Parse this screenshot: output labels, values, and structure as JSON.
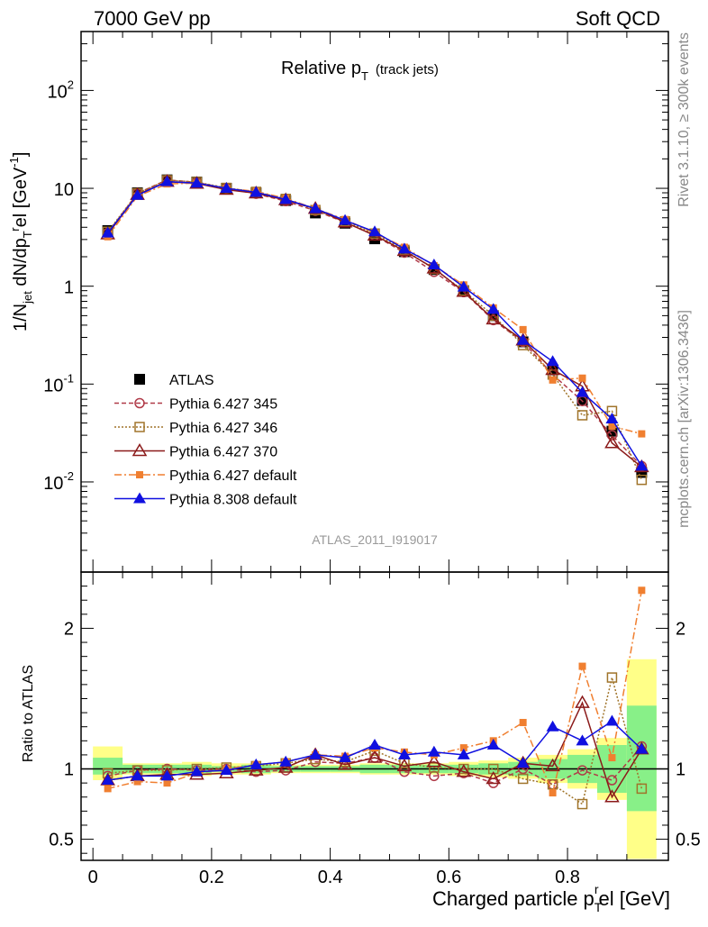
{
  "header": {
    "energy_label": "7000 GeV pp",
    "process_label": "Soft QCD",
    "right_label_top": "Rivet 3.1.10, ≥ 300k events",
    "right_label_bottom": "mcplots.cern.ch [arXiv:1306.3436]"
  },
  "plot": {
    "title_main": "Relative p",
    "title_sub": "T",
    "title_extra": "(track jets)",
    "analysis_id": "ATLAS_2011_I919017",
    "ylabel_main": "1/N",
    "ylabel_main_sub": "jet",
    "ylabel_main_rest": " dN/dp",
    "ylabel_main_sub2": "T",
    "ylabel_main_sup2": "r",
    "ylabel_main_tail": "el [GeV",
    "ylabel_main_sup3": "-1",
    "ylabel_main_end": "]",
    "ylabel_ratio": "Ratio to ATLAS",
    "xlabel_main": "Charged particle p",
    "xlabel_sub": "T",
    "xlabel_sup": "r",
    "xlabel_tail": "el [GeV]",
    "colors": {
      "atlas": "#000000",
      "p345": "#b03a48",
      "p346": "#a0742a",
      "p370": "#8b1a1a",
      "pdefault": "#f07f30",
      "p8": "#1010e0",
      "band_inner": "#88f088",
      "band_outer": "#ffff88"
    }
  },
  "chart_data": {
    "type": "line",
    "x": [
      0.025,
      0.075,
      0.125,
      0.175,
      0.225,
      0.275,
      0.325,
      0.375,
      0.425,
      0.475,
      0.525,
      0.575,
      0.625,
      0.675,
      0.725,
      0.775,
      0.825,
      0.875,
      0.925
    ],
    "xlim": [
      -0.02,
      0.97
    ],
    "x_ticks": [
      0,
      0.2,
      0.4,
      0.6,
      0.8
    ],
    "x_tick_labels": [
      "0",
      "0.2",
      "0.4",
      "0.6",
      "0.8"
    ],
    "main": {
      "yscale": "log",
      "ylim": [
        0.0012,
        400
      ],
      "y_ticks": [
        0.01,
        0.1,
        1,
        10,
        100
      ],
      "y_tick_labels": [
        [
          "10",
          "-2"
        ],
        [
          "10",
          "-1"
        ],
        [
          "1",
          ""
        ],
        [
          "10",
          ""
        ],
        [
          "10",
          "2"
        ]
      ],
      "legend_position": "lower-left",
      "series": [
        {
          "name": "ATLAS",
          "style": "atlas",
          "values": [
            3.7,
            9.0,
            12.2,
            11.6,
            10.0,
            9.0,
            7.5,
            5.6,
            4.4,
            3.05,
            2.25,
            1.48,
            0.9,
            0.5,
            0.27,
            0.14,
            0.068,
            0.033,
            0.0125
          ]
        },
        {
          "name": "Pythia 6.427 345",
          "style": "p345",
          "values": [
            3.5,
            8.9,
            12.2,
            11.5,
            10.0,
            8.8,
            7.4,
            5.9,
            4.5,
            3.3,
            2.2,
            1.4,
            0.87,
            0.45,
            0.27,
            0.125,
            0.067,
            0.03,
            0.0145
          ]
        },
        {
          "name": "Pythia 6.427 346",
          "style": "p346",
          "values": [
            3.6,
            8.9,
            12.1,
            11.6,
            10.1,
            9.2,
            7.8,
            6.0,
            4.6,
            3.45,
            2.35,
            1.5,
            0.9,
            0.5,
            0.25,
            0.125,
            0.048,
            0.053,
            0.0105
          ]
        },
        {
          "name": "Pythia 6.427 370",
          "style": "p370",
          "values": [
            3.4,
            8.6,
            11.7,
            11.2,
            9.7,
            8.9,
            7.6,
            6.2,
            4.5,
            3.3,
            2.3,
            1.52,
            0.88,
            0.46,
            0.28,
            0.14,
            0.095,
            0.025,
            0.0142
          ]
        },
        {
          "name": "Pythia 6.427 default",
          "style": "pdefault",
          "values": [
            3.2,
            8.3,
            11.1,
            11.3,
            10.0,
            9.3,
            7.9,
            6.2,
            4.8,
            3.5,
            2.5,
            1.62,
            1.03,
            0.6,
            0.36,
            0.11,
            0.115,
            0.037,
            0.031
          ]
        },
        {
          "name": "Pythia 8.308 default",
          "style": "p8",
          "values": [
            3.5,
            8.5,
            11.7,
            11.3,
            10.0,
            9.1,
            7.7,
            6.2,
            4.7,
            3.6,
            2.4,
            1.65,
            0.98,
            0.58,
            0.28,
            0.17,
            0.082,
            0.044,
            0.0145
          ]
        }
      ]
    },
    "ratio": {
      "ylim": [
        0.35,
        2.4
      ],
      "y_ticks": [
        0.5,
        1,
        2
      ],
      "y_tick_labels": [
        "0.5",
        "1",
        "2"
      ],
      "band_bins": [
        -0.0,
        0.05,
        0.05,
        0.1,
        0.1,
        0.15,
        0.15,
        0.2,
        0.2,
        0.25,
        0.25,
        0.3,
        0.3,
        0.35,
        0.35,
        0.4,
        0.4,
        0.45,
        0.45,
        0.5,
        0.5,
        0.55,
        0.55,
        0.6,
        0.6,
        0.65,
        0.65,
        0.7,
        0.7,
        0.75,
        0.75,
        0.8,
        0.8,
        0.85,
        0.85,
        0.9,
        0.9,
        0.95
      ],
      "band_inner_lo": [
        0.96,
        0.97,
        0.97,
        0.97,
        0.98,
        0.97,
        0.98,
        0.98,
        0.98,
        0.97,
        0.97,
        0.97,
        0.97,
        0.96,
        0.95,
        0.93,
        0.9,
        0.83,
        0.7
      ],
      "band_inner_hi": [
        1.08,
        1.03,
        1.03,
        1.03,
        1.02,
        1.03,
        1.02,
        1.02,
        1.02,
        1.03,
        1.03,
        1.03,
        1.03,
        1.04,
        1.05,
        1.07,
        1.1,
        1.17,
        1.45
      ],
      "band_outer_lo": [
        0.92,
        0.96,
        0.96,
        0.95,
        0.96,
        0.96,
        0.97,
        0.97,
        0.97,
        0.96,
        0.96,
        0.96,
        0.95,
        0.94,
        0.93,
        0.9,
        0.86,
        0.78,
        0.36
      ],
      "band_outer_hi": [
        1.16,
        1.04,
        1.04,
        1.05,
        1.04,
        1.04,
        1.03,
        1.03,
        1.03,
        1.04,
        1.04,
        1.04,
        1.05,
        1.06,
        1.08,
        1.1,
        1.14,
        1.22,
        1.78
      ],
      "series": [
        {
          "name": "Pythia 6.427 345",
          "style": "p345",
          "values": [
            0.95,
            0.99,
            1.0,
            0.99,
            1.0,
            0.98,
            0.99,
            1.05,
            1.04,
            1.08,
            0.98,
            0.95,
            0.97,
            0.9,
            1.0,
            0.89,
            0.99,
            0.92,
            1.16
          ]
        },
        {
          "name": "Pythia 6.427 346",
          "style": "p346",
          "values": [
            0.97,
            0.99,
            0.99,
            1.0,
            1.01,
            1.02,
            1.04,
            1.07,
            1.05,
            1.13,
            1.04,
            1.01,
            1.0,
            1.0,
            0.93,
            0.89,
            0.75,
            1.65,
            0.86
          ]
        },
        {
          "name": "Pythia 6.427 370",
          "style": "p370",
          "values": [
            0.92,
            0.95,
            0.96,
            0.96,
            0.97,
            0.99,
            1.01,
            1.1,
            1.03,
            1.08,
            1.02,
            1.05,
            0.98,
            0.93,
            1.04,
            1.02,
            1.47,
            0.8,
            1.14
          ]
        },
        {
          "name": "Pythia 6.427 default",
          "style": "pdefault",
          "values": [
            0.86,
            0.91,
            0.9,
            0.97,
            1.0,
            1.03,
            1.05,
            1.1,
            1.09,
            1.15,
            1.12,
            1.1,
            1.15,
            1.2,
            1.33,
            0.83,
            1.73,
            1.08,
            2.27
          ]
        },
        {
          "name": "Pythia 8.308 default",
          "style": "p8",
          "values": [
            0.92,
            0.95,
            0.95,
            0.98,
            0.99,
            1.03,
            1.05,
            1.1,
            1.08,
            1.17,
            1.1,
            1.12,
            1.1,
            1.17,
            1.04,
            1.3,
            1.2,
            1.34,
            1.14
          ]
        }
      ]
    }
  }
}
